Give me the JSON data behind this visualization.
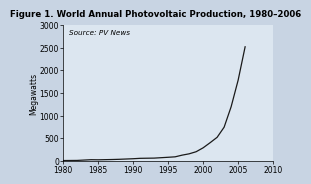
{
  "title": "Figure 1. World Annual Photovoltaic Production, 1980–2006",
  "source_text": "Source: PV News",
  "ylabel": "Megawatts",
  "xlim": [
    1980,
    2010
  ],
  "ylim": [
    0,
    3000
  ],
  "xticks": [
    1980,
    1985,
    1990,
    1995,
    2000,
    2005,
    2010
  ],
  "yticks": [
    0,
    500,
    1000,
    1500,
    2000,
    2500,
    3000
  ],
  "years": [
    1980,
    1981,
    1982,
    1983,
    1984,
    1985,
    1986,
    1987,
    1988,
    1989,
    1990,
    1991,
    1992,
    1993,
    1994,
    1995,
    1996,
    1997,
    1998,
    1999,
    2000,
    2001,
    2002,
    2003,
    2004,
    2005,
    2006
  ],
  "values": [
    6.5,
    7.8,
    9.1,
    17.2,
    25.0,
    22.8,
    26.0,
    29.2,
    33.8,
    40.2,
    46.5,
    55.4,
    57.9,
    60.1,
    69.4,
    78.6,
    88.6,
    125.8,
    154.9,
    201.3,
    287.7,
    401.0,
    520.0,
    744.0,
    1195.0,
    1782.0,
    2521.0
  ],
  "line_color": "#1a1a1a",
  "bg_color": "#c8d4e3",
  "plot_bg_color": "#dce6f0",
  "title_fontsize": 6.2,
  "label_fontsize": 5.5,
  "tick_fontsize": 5.5,
  "source_fontsize": 5.2
}
